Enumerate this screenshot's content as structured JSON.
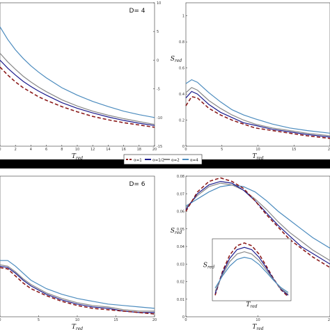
{
  "chart_data": [
    {
      "panel": "top-left",
      "type": "line",
      "annotation": "D= 4",
      "xlabel": "T",
      "xlabel_sub": "red",
      "xlim": [
        0,
        20
      ],
      "ylim": [
        -15,
        10
      ],
      "xticks": [
        "0",
        "2",
        "4",
        "6",
        "8",
        "10",
        "12",
        "14",
        "16",
        "18",
        "20"
      ],
      "yticks_right": [
        "10",
        "5",
        "0",
        "-5",
        "-10",
        "-15"
      ],
      "x": [
        0,
        1,
        2,
        3,
        4,
        5,
        6,
        8,
        10,
        12,
        14,
        16,
        18,
        20
      ],
      "series": [
        {
          "color": "#4b8bbe",
          "dash": false,
          "values": [
            5.8,
            3.6,
            1.8,
            0.3,
            -1.0,
            -2.1,
            -3.1,
            -4.8,
            -6.1,
            -7.2,
            -8.1,
            -8.9,
            -9.5,
            -10.0
          ]
        },
        {
          "color": "#888888",
          "dash": false,
          "values": [
            1.2,
            -0.3,
            -1.6,
            -2.8,
            -3.8,
            -4.7,
            -5.5,
            -6.9,
            -8.0,
            -8.9,
            -9.6,
            -10.2,
            -10.7,
            -11.2
          ]
        },
        {
          "color": "#1a1a8c",
          "dash": false,
          "values": [
            0.0,
            -1.4,
            -2.6,
            -3.7,
            -4.6,
            -5.4,
            -6.1,
            -7.4,
            -8.4,
            -9.2,
            -9.9,
            -10.5,
            -11.0,
            -11.4
          ]
        },
        {
          "color": "#8b1a1a",
          "dash": true,
          "values": [
            -1.2,
            -2.6,
            -3.8,
            -4.8,
            -5.6,
            -6.4,
            -7.0,
            -8.1,
            -9.0,
            -9.8,
            -10.4,
            -10.9,
            -11.3,
            -11.7
          ]
        }
      ]
    },
    {
      "panel": "top-right",
      "type": "line",
      "xlabel": "T",
      "xlabel_sub": "red",
      "ylabel": "S",
      "ylabel_sub": "red",
      "xlim": [
        0,
        25
      ],
      "ylim": [
        0,
        1.1
      ],
      "xticks": [
        "0",
        "5",
        "10",
        "15",
        "20"
      ],
      "yticks": [
        "0",
        "0.2",
        "0.4",
        "0.6",
        "0.8",
        "1"
      ],
      "x": [
        0,
        1,
        2,
        3,
        4,
        6,
        8,
        10,
        12,
        15,
        18,
        21,
        25
      ],
      "series": [
        {
          "color": "#4b8bbe",
          "dash": false,
          "values": [
            0.48,
            0.51,
            0.49,
            0.45,
            0.41,
            0.34,
            0.28,
            0.24,
            0.21,
            0.17,
            0.14,
            0.12,
            0.1
          ]
        },
        {
          "color": "#888888",
          "dash": false,
          "values": [
            0.41,
            0.45,
            0.43,
            0.39,
            0.35,
            0.29,
            0.24,
            0.2,
            0.17,
            0.14,
            0.12,
            0.1,
            0.08
          ]
        },
        {
          "color": "#1a1a8c",
          "dash": false,
          "values": [
            0.37,
            0.42,
            0.4,
            0.36,
            0.32,
            0.26,
            0.22,
            0.18,
            0.16,
            0.13,
            0.11,
            0.09,
            0.07
          ]
        },
        {
          "color": "#8b1a1a",
          "dash": true,
          "values": [
            0.31,
            0.38,
            0.37,
            0.33,
            0.29,
            0.24,
            0.2,
            0.17,
            0.14,
            0.12,
            0.1,
            0.08,
            0.06
          ]
        }
      ]
    },
    {
      "panel": "bottom-left",
      "type": "line",
      "annotation": "D= 6",
      "xlabel": "T",
      "xlabel_sub": "red",
      "xlim": [
        0,
        20
      ],
      "ylim": [
        0,
        10
      ],
      "xticks": [
        "0",
        "5",
        "10",
        "15",
        "20"
      ],
      "x": [
        0,
        1,
        2,
        3,
        4,
        6,
        8,
        10,
        12,
        14,
        16,
        18,
        20
      ],
      "series": [
        {
          "color": "#4b8bbe",
          "dash": false,
          "values": [
            4.0,
            4.0,
            3.6,
            3.1,
            2.6,
            2.0,
            1.6,
            1.3,
            1.1,
            0.9,
            0.8,
            0.7,
            0.6
          ]
        },
        {
          "color": "#888888",
          "dash": false,
          "values": [
            3.7,
            3.6,
            3.2,
            2.7,
            2.3,
            1.7,
            1.3,
            1.0,
            0.8,
            0.7,
            0.5,
            0.4,
            0.4
          ]
        },
        {
          "color": "#1a1a8c",
          "dash": false,
          "values": [
            3.6,
            3.5,
            3.1,
            2.6,
            2.2,
            1.6,
            1.2,
            0.9,
            0.7,
            0.6,
            0.4,
            0.3,
            0.3
          ]
        },
        {
          "color": "#8b1a1a",
          "dash": true,
          "values": [
            3.5,
            3.4,
            2.9,
            2.4,
            2.0,
            1.5,
            1.1,
            0.8,
            0.6,
            0.5,
            0.4,
            0.3,
            0.2
          ]
        }
      ]
    },
    {
      "panel": "bottom-right",
      "type": "line",
      "xlabel": "T",
      "xlabel_sub": "red",
      "ylabel": "S",
      "ylabel_sub": "red",
      "xlim": [
        0,
        25
      ],
      "ylim": [
        0,
        0.08
      ],
      "xticks": [
        "0",
        "10",
        "20"
      ],
      "yticks": [
        "0",
        "0.01",
        "0.02",
        "0.03",
        "0.04",
        "0.05",
        "0.06",
        "0.07",
        "0.08"
      ],
      "x": [
        0,
        2,
        4,
        6,
        8,
        10,
        12,
        14,
        16,
        18,
        20,
        22,
        25
      ],
      "series": [
        {
          "color": "#4b8bbe",
          "dash": false,
          "values": [
            0.063,
            0.067,
            0.071,
            0.074,
            0.075,
            0.074,
            0.071,
            0.066,
            0.06,
            0.055,
            0.05,
            0.045,
            0.039
          ]
        },
        {
          "color": "#888888",
          "dash": false,
          "values": [
            0.062,
            0.069,
            0.074,
            0.076,
            0.075,
            0.072,
            0.067,
            0.061,
            0.054,
            0.048,
            0.043,
            0.038,
            0.032
          ]
        },
        {
          "color": "#1a1a8c",
          "dash": false,
          "values": [
            0.061,
            0.07,
            0.075,
            0.077,
            0.076,
            0.072,
            0.066,
            0.059,
            0.052,
            0.046,
            0.04,
            0.036,
            0.03
          ]
        },
        {
          "color": "#8b1a1a",
          "dash": true,
          "values": [
            0.06,
            0.071,
            0.077,
            0.079,
            0.077,
            0.073,
            0.066,
            0.058,
            0.051,
            0.044,
            0.039,
            0.034,
            0.028
          ]
        }
      ],
      "inset": {
        "xlabel": "T",
        "xlabel_sub": "red",
        "ylabel": "S",
        "ylabel_sub": "red",
        "x": [
          0,
          1,
          2,
          3,
          4,
          5,
          6,
          7,
          8,
          9,
          10
        ],
        "series": [
          {
            "color": "#8b1a1a",
            "dash": true,
            "values": [
              0.05,
              0.48,
              0.78,
              0.95,
              1.0,
              0.95,
              0.8,
              0.58,
              0.35,
              0.15,
              0.02
            ]
          },
          {
            "color": "#1a1a8c",
            "dash": false,
            "values": [
              0.08,
              0.45,
              0.72,
              0.88,
              0.92,
              0.88,
              0.74,
              0.55,
              0.34,
              0.16,
              0.05
            ]
          },
          {
            "color": "#888888",
            "dash": false,
            "values": [
              0.12,
              0.42,
              0.66,
              0.8,
              0.84,
              0.8,
              0.68,
              0.51,
              0.33,
              0.17,
              0.07
            ]
          },
          {
            "color": "#4b8bbe",
            "dash": false,
            "values": [
              0.18,
              0.4,
              0.58,
              0.7,
              0.74,
              0.71,
              0.61,
              0.47,
              0.32,
              0.19,
              0.1
            ]
          }
        ]
      }
    }
  ],
  "legend": {
    "placement": "center",
    "entries": [
      {
        "color": "#8b1a1a",
        "dash": true,
        "label": "α=1"
      },
      {
        "color": "#1a1a8c",
        "dash": false,
        "label": "α=1/2"
      },
      {
        "color": "#888888",
        "dash": false,
        "label": "α=2"
      },
      {
        "color": "#4b8bbe",
        "dash": false,
        "label": "α=4"
      }
    ]
  }
}
